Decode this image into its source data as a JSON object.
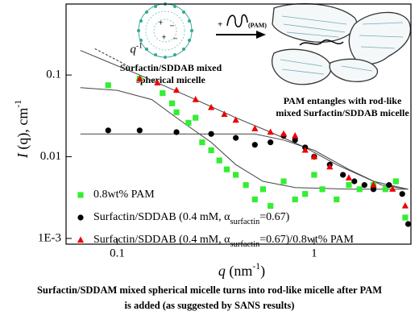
{
  "chart_data": {
    "type": "scatter",
    "log_x": true,
    "log_y": true,
    "xlim": [
      0.055,
      3.1
    ],
    "ylim": [
      0.00085,
      0.74
    ],
    "xticks": [
      0.1,
      1
    ],
    "yticks": [
      {
        "value": 0.001,
        "label": "1E-3"
      },
      0.01,
      0.1
    ],
    "x_label": [
      "q",
      " (nm",
      "-1",
      ")"
    ],
    "y_label": [
      "I",
      " (q), cm",
      "-1"
    ],
    "series": [
      {
        "name": [
          "0.8wt% PAM"
        ],
        "color": "#33ee33",
        "marker": "square",
        "x": [
          0.09,
          0.13,
          0.17,
          0.19,
          0.2,
          0.23,
          0.25,
          0.27,
          0.3,
          0.33,
          0.36,
          0.4,
          0.45,
          0.5,
          0.55,
          0.6,
          0.7,
          0.8,
          0.9,
          1.0,
          1.1,
          1.3,
          1.5,
          1.7,
          2.0,
          2.3,
          2.6,
          2.9
        ],
        "values": [
          0.075,
          0.09,
          0.06,
          0.045,
          0.035,
          0.026,
          0.03,
          0.015,
          0.012,
          0.009,
          0.007,
          0.006,
          0.0045,
          0.003,
          0.004,
          0.0025,
          0.005,
          0.003,
          0.0035,
          0.006,
          0.004,
          0.003,
          0.0045,
          0.004,
          0.0045,
          0.004,
          0.005,
          0.0018
        ]
      },
      {
        "name": [
          "Surfactin/SDDAB (0.4 mM, α",
          "surfactin",
          "=0.67)"
        ],
        "color": "#000000",
        "marker": "circle",
        "x": [
          0.09,
          0.13,
          0.2,
          0.3,
          0.4,
          0.5,
          0.6,
          0.7,
          0.8,
          0.9,
          1.0,
          1.2,
          1.4,
          1.6,
          1.8,
          2.0,
          2.4,
          2.8,
          3.0
        ],
        "values": [
          0.021,
          0.021,
          0.02,
          0.019,
          0.017,
          0.014,
          0.015,
          0.018,
          0.016,
          0.013,
          0.01,
          0.008,
          0.006,
          0.005,
          0.0045,
          0.004,
          0.0045,
          0.0035,
          0.0015
        ]
      },
      {
        "name": [
          "Surfactin/SDDAB (0.4 mM, α",
          "surfactin",
          "=0.67)/0.8wt% PAM"
        ],
        "color": "#ee0000",
        "marker": "triangle",
        "x": [
          0.13,
          0.16,
          0.2,
          0.25,
          0.3,
          0.35,
          0.4,
          0.5,
          0.6,
          0.7,
          0.8,
          0.9,
          1.0,
          1.2,
          1.5,
          2.0,
          2.5,
          2.9
        ],
        "values": [
          0.09,
          0.08,
          0.065,
          0.05,
          0.04,
          0.033,
          0.028,
          0.022,
          0.02,
          0.019,
          0.018,
          0.012,
          0.01,
          0.0075,
          0.0055,
          0.0045,
          0.004,
          0.0025
        ]
      }
    ],
    "fits": [
      {
        "color": "#444444",
        "x": [
          0.065,
          0.1,
          0.15,
          0.2,
          0.3,
          0.4,
          0.55,
          0.8,
          1.5,
          3.0
        ],
        "values": [
          0.07,
          0.065,
          0.05,
          0.03,
          0.015,
          0.008,
          0.005,
          0.0042,
          0.004,
          0.004
        ]
      },
      {
        "color": "#444444",
        "x": [
          0.065,
          0.3,
          0.5,
          0.7,
          1.0,
          1.5,
          2.2,
          3.0
        ],
        "values": [
          0.019,
          0.019,
          0.019,
          0.016,
          0.012,
          0.007,
          0.0045,
          0.004
        ]
      },
      {
        "color": "#444444",
        "x": [
          0.065,
          0.13,
          0.25,
          0.4,
          0.6,
          0.9,
          1.3,
          2.0,
          3.0
        ],
        "values": [
          0.2,
          0.1,
          0.05,
          0.03,
          0.02,
          0.013,
          0.008,
          0.005,
          0.004
        ]
      }
    ],
    "reference_line": {
      "x": [
        0.077,
        0.114
      ],
      "values": [
        0.21,
        0.128
      ],
      "label": [
        "q",
        "-1"
      ]
    }
  },
  "diagram": {
    "left_label": [
      "Surfactin/SDDAB mixed",
      "spherical micelle"
    ],
    "plus": "+",
    "polymer_label": "(PAM)",
    "right_label": [
      "PAM entangles with rod-like",
      "mixed Surfactin/SDDAB micelle"
    ]
  },
  "caption": [
    "Surfactin/SDDAM mixed spherical micelle turns into rod-like micelle after PAM",
    "is added (as suggested by SANS results)"
  ]
}
